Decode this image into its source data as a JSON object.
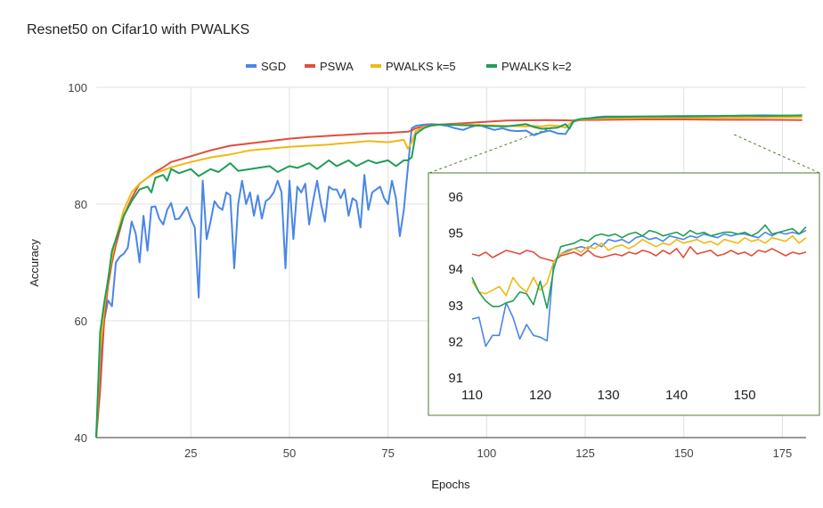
{
  "chart_data": [
    {
      "type": "line",
      "title": "Resnet50 on Cifar10 with PWALKS",
      "xlabel": "Epochs",
      "ylabel": "Accuracy",
      "xlim": [
        1,
        181
      ],
      "ylim": [
        40,
        100
      ],
      "xticks": [
        25,
        50,
        75,
        100,
        125,
        150,
        175
      ],
      "yticks": [
        40,
        60,
        80,
        100
      ],
      "grid": true,
      "legend_position": "top-center",
      "series": [
        {
          "name": "SGD",
          "color": "#4a86e8",
          "x": [
            1,
            2,
            3,
            4,
            5,
            6,
            7,
            8,
            9,
            10,
            11,
            12,
            13,
            14,
            15,
            16,
            17,
            18,
            19,
            20,
            21,
            22,
            23,
            24,
            25,
            26,
            27,
            28,
            29,
            30,
            31,
            32,
            33,
            34,
            35,
            36,
            37,
            38,
            39,
            40,
            41,
            42,
            43,
            44,
            45,
            46,
            47,
            48,
            49,
            50,
            51,
            52,
            53,
            54,
            55,
            56,
            57,
            58,
            59,
            60,
            61,
            62,
            63,
            64,
            65,
            66,
            67,
            68,
            69,
            70,
            71,
            72,
            73,
            74,
            75,
            76,
            77,
            78,
            79,
            80,
            81,
            82,
            84,
            86,
            88,
            90,
            92,
            94,
            96,
            98,
            100,
            102,
            104,
            106,
            108,
            110,
            112,
            114,
            116,
            118,
            120,
            122,
            124,
            126,
            128,
            130,
            140,
            150,
            160,
            170,
            180
          ],
          "y": [
            40,
            52,
            60,
            63.5,
            62.5,
            70,
            71,
            71.5,
            72.5,
            77,
            75,
            70,
            78,
            72,
            79.5,
            79.6,
            77.5,
            76.5,
            79,
            80.2,
            77.4,
            77.5,
            78.5,
            79.5,
            77.5,
            76,
            64,
            84,
            74,
            77,
            80.5,
            79.5,
            79,
            82,
            81.5,
            69,
            80,
            84,
            80,
            82,
            78,
            81.5,
            77.5,
            80.5,
            81,
            82,
            84,
            82,
            69,
            84,
            74,
            83,
            82,
            83.5,
            76.5,
            80.5,
            84,
            80,
            77,
            83,
            82.5,
            82.5,
            81,
            82.5,
            78,
            81,
            80.5,
            76,
            85,
            79,
            82,
            82.5,
            83,
            81,
            80,
            84,
            81,
            74.5,
            79,
            86,
            93,
            93.4,
            93.6,
            93.7,
            93.6,
            93.4,
            93.0,
            92.7,
            93.2,
            93.6,
            93.1,
            92.7,
            93.0,
            92.6,
            92.5,
            92.6,
            91.8,
            92.3,
            92.6,
            92.1,
            92.0,
            94.1,
            94.5,
            94.7,
            94.9,
            95.0,
            95.0,
            95.1,
            95.1,
            95.2,
            95.1
          ]
        },
        {
          "name": "PSWA",
          "color": "#e04e3c",
          "x": [
            1,
            2,
            3,
            4,
            5,
            6,
            8,
            10,
            12,
            14,
            16,
            18,
            20,
            25,
            30,
            35,
            40,
            45,
            50,
            55,
            60,
            65,
            70,
            75,
            80,
            81,
            82,
            84,
            86,
            88,
            90,
            95,
            100,
            105,
            110,
            115,
            120,
            122,
            124,
            130,
            140,
            150,
            160,
            170,
            180
          ],
          "y": [
            40,
            48,
            60,
            66,
            70,
            73,
            78,
            81,
            83.5,
            84.5,
            85.5,
            86.3,
            87.2,
            88.2,
            89.2,
            90,
            90.4,
            90.8,
            91.2,
            91.5,
            91.7,
            91.9,
            92.1,
            92.2,
            92.4,
            92.6,
            93,
            93.3,
            93.5,
            93.6,
            93.7,
            93.9,
            94.1,
            94.3,
            94.35,
            94.4,
            94.35,
            94.3,
            94.4,
            94.45,
            94.5,
            94.5,
            94.45,
            94.45,
            94.4
          ]
        },
        {
          "name": "PWALKS k=5",
          "color": "#f1b814",
          "x": [
            1,
            2,
            3,
            4,
            5,
            6,
            8,
            10,
            12,
            14,
            16,
            18,
            20,
            25,
            30,
            35,
            40,
            45,
            50,
            55,
            60,
            65,
            70,
            75,
            79,
            80,
            81,
            82,
            84,
            86,
            88,
            90,
            95,
            100,
            105,
            110,
            112,
            114,
            116,
            118,
            120,
            122,
            124,
            126,
            130,
            140,
            150,
            160,
            170,
            180
          ],
          "y": [
            40,
            55,
            62,
            67,
            71,
            74,
            79,
            82,
            83.5,
            84.5,
            85.3,
            85.8,
            86.3,
            87.2,
            88,
            88.5,
            89.2,
            89.5,
            89.8,
            90,
            90.2,
            90.5,
            90.8,
            90.6,
            91,
            89.5,
            90.5,
            92.5,
            93.2,
            93.4,
            93.6,
            93.6,
            93.6,
            93.5,
            93.4,
            93.3,
            93.4,
            93.3,
            93.5,
            93.4,
            93.1,
            94.3,
            94.5,
            94.6,
            94.7,
            94.8,
            94.8,
            94.8,
            94.85,
            94.9
          ]
        },
        {
          "name": "PWALKS k=2",
          "color": "#1f9e55",
          "x": [
            1,
            2,
            3,
            4,
            5,
            6,
            7,
            8,
            10,
            12,
            14,
            15,
            16,
            18,
            19,
            20,
            22,
            25,
            27,
            30,
            32,
            35,
            37,
            40,
            42,
            45,
            47,
            50,
            52,
            55,
            57,
            60,
            62,
            65,
            67,
            70,
            72,
            75,
            77,
            79,
            80,
            81,
            82,
            84,
            86,
            88,
            90,
            95,
            100,
            105,
            110,
            112,
            114,
            116,
            118,
            120,
            121,
            122,
            124,
            126,
            130,
            140,
            150,
            160,
            165,
            170,
            180
          ],
          "y": [
            40,
            58,
            63,
            67,
            72,
            74,
            76,
            78,
            80.5,
            82.5,
            83,
            82,
            84.5,
            85,
            84,
            86,
            85.3,
            86,
            84.8,
            86,
            85.5,
            87,
            85.7,
            86,
            86.2,
            86.5,
            85.5,
            86.5,
            86.2,
            87,
            86,
            87.5,
            86.5,
            87.5,
            86.5,
            87.5,
            87,
            87.5,
            86.5,
            87.5,
            87.5,
            88,
            92,
            93,
            93.5,
            93.6,
            93.6,
            93.5,
            93.4,
            93.3,
            93.7,
            93.2,
            92.9,
            93.0,
            93.1,
            93.7,
            92.9,
            94.3,
            94.6,
            94.7,
            94.9,
            95.0,
            95.0,
            95.1,
            95.15,
            95.1,
            95.2
          ]
        }
      ]
    },
    {
      "type": "line",
      "title": "",
      "xlim": [
        110,
        159
      ],
      "ylim": [
        91,
        96
      ],
      "xticks": [
        110,
        120,
        130,
        140,
        150
      ],
      "yticks": [
        91,
        92,
        93,
        94,
        95,
        96
      ],
      "grid": false,
      "series": [
        {
          "name": "SGD",
          "color": "#4a86e8",
          "x": [
            110,
            111,
            112,
            113,
            114,
            115,
            116,
            117,
            118,
            119,
            120,
            121,
            122,
            123,
            124,
            125,
            126,
            127,
            128,
            129,
            130,
            131,
            132,
            133,
            134,
            135,
            136,
            137,
            138,
            139,
            140,
            141,
            142,
            143,
            144,
            145,
            146,
            147,
            148,
            149,
            150,
            151,
            152,
            153,
            154,
            155,
            156,
            157,
            158,
            159
          ],
          "y": [
            92.6,
            92.65,
            91.85,
            92.15,
            92.15,
            93.05,
            92.65,
            92.05,
            92.45,
            92.15,
            92.1,
            92.0,
            94.2,
            94.4,
            94.5,
            94.55,
            94.6,
            94.55,
            94.7,
            94.6,
            94.8,
            94.75,
            94.8,
            94.7,
            94.85,
            94.9,
            94.8,
            94.85,
            94.75,
            94.9,
            94.85,
            94.8,
            94.9,
            94.85,
            94.95,
            94.9,
            94.85,
            94.95,
            94.9,
            94.95,
            94.95,
            94.9,
            94.85,
            95.0,
            94.9,
            95.0,
            94.95,
            95.0,
            94.95,
            95.05
          ]
        },
        {
          "name": "PSWA",
          "color": "#e04e3c",
          "x": [
            110,
            111,
            112,
            113,
            114,
            115,
            116,
            117,
            118,
            119,
            120,
            121,
            122,
            123,
            124,
            125,
            126,
            127,
            128,
            129,
            130,
            131,
            132,
            133,
            134,
            135,
            136,
            137,
            138,
            139,
            140,
            141,
            142,
            143,
            144,
            145,
            146,
            147,
            148,
            149,
            150,
            151,
            152,
            153,
            154,
            155,
            156,
            157,
            158,
            159
          ],
          "y": [
            94.4,
            94.35,
            94.45,
            94.3,
            94.4,
            94.5,
            94.45,
            94.4,
            94.5,
            94.45,
            94.3,
            94.25,
            94.2,
            94.35,
            94.4,
            94.45,
            94.35,
            94.5,
            94.35,
            94.3,
            94.35,
            94.4,
            94.35,
            94.45,
            94.4,
            94.5,
            94.45,
            94.35,
            94.5,
            94.4,
            94.55,
            94.3,
            94.6,
            94.4,
            94.45,
            94.5,
            94.35,
            94.4,
            94.5,
            94.4,
            94.45,
            94.35,
            94.5,
            94.45,
            94.55,
            94.45,
            94.35,
            94.45,
            94.4,
            94.45
          ]
        },
        {
          "name": "PWALKS k=5",
          "color": "#f1b814",
          "x": [
            110,
            111,
            112,
            113,
            114,
            115,
            116,
            117,
            118,
            119,
            120,
            121,
            122,
            123,
            124,
            125,
            126,
            127,
            128,
            129,
            130,
            131,
            132,
            133,
            134,
            135,
            136,
            137,
            138,
            139,
            140,
            141,
            142,
            143,
            144,
            145,
            146,
            147,
            148,
            149,
            150,
            151,
            152,
            153,
            154,
            155,
            156,
            157,
            158,
            159
          ],
          "y": [
            93.65,
            93.35,
            93.3,
            93.4,
            93.5,
            93.25,
            93.75,
            93.5,
            93.35,
            93.75,
            93.4,
            93.6,
            94.2,
            94.4,
            94.45,
            94.55,
            94.45,
            94.6,
            94.55,
            94.7,
            94.5,
            94.6,
            94.65,
            94.55,
            94.65,
            94.8,
            94.7,
            94.6,
            94.7,
            94.65,
            94.8,
            94.7,
            94.75,
            94.8,
            94.7,
            94.75,
            94.65,
            94.8,
            94.75,
            94.7,
            94.85,
            94.75,
            94.8,
            94.7,
            94.85,
            94.8,
            94.75,
            94.9,
            94.7,
            94.85
          ]
        },
        {
          "name": "PWALKS k=2",
          "color": "#1f9e55",
          "x": [
            110,
            111,
            112,
            113,
            114,
            115,
            116,
            117,
            118,
            119,
            120,
            121,
            122,
            123,
            124,
            125,
            126,
            127,
            128,
            129,
            130,
            131,
            132,
            133,
            134,
            135,
            136,
            137,
            138,
            139,
            140,
            141,
            142,
            143,
            144,
            145,
            146,
            147,
            148,
            149,
            150,
            151,
            152,
            153,
            154,
            155,
            156,
            157,
            158,
            159
          ],
          "y": [
            93.75,
            93.35,
            93.1,
            92.95,
            92.95,
            93.05,
            93.1,
            93.35,
            93.3,
            93.0,
            93.65,
            92.9,
            94.0,
            94.6,
            94.65,
            94.7,
            94.8,
            94.75,
            94.9,
            94.95,
            94.9,
            94.95,
            94.85,
            94.95,
            95.0,
            94.9,
            95.05,
            95.0,
            94.9,
            94.95,
            95.0,
            94.9,
            95.05,
            94.95,
            95.0,
            94.9,
            94.95,
            95.0,
            95.0,
            94.95,
            95.0,
            94.9,
            95.0,
            95.2,
            94.95,
            95.0,
            95.05,
            95.1,
            94.95,
            95.15
          ]
        }
      ]
    }
  ]
}
